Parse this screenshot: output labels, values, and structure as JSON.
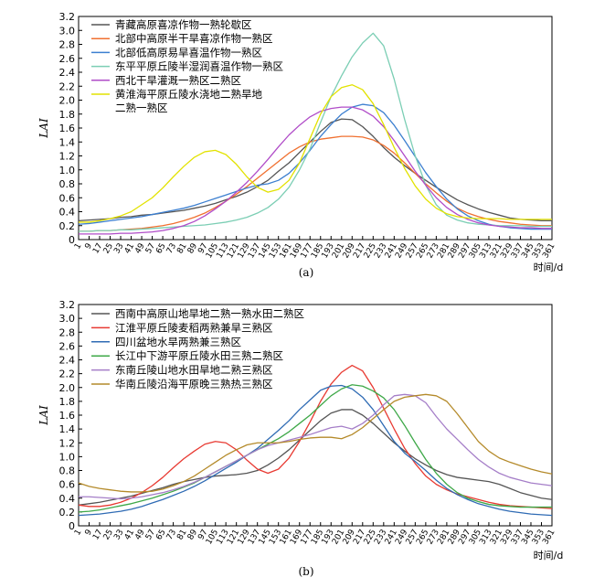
{
  "chart_data": [
    {
      "type": "line",
      "caption": "(a)",
      "ylabel": "LAI",
      "xlabel": "时间/d",
      "ylim": [
        0,
        3.2
      ],
      "yticks": [
        "0",
        "0.2",
        "0.4",
        "0.6",
        "0.8",
        "1.0",
        "1.2",
        "1.4",
        "1.6",
        "1.8",
        "2.0",
        "2.2",
        "2.4",
        "2.6",
        "2.8",
        "3.0",
        "3.2"
      ],
      "x": [
        1,
        9,
        17,
        25,
        33,
        41,
        49,
        57,
        65,
        73,
        81,
        89,
        97,
        105,
        113,
        121,
        129,
        137,
        145,
        153,
        161,
        169,
        177,
        185,
        193,
        201,
        209,
        217,
        225,
        233,
        241,
        249,
        257,
        265,
        273,
        281,
        289,
        297,
        305,
        313,
        321,
        329,
        337,
        345,
        353,
        361
      ],
      "xticks": [
        "1",
        "9",
        "17",
        "25",
        "33",
        "41",
        "49",
        "57",
        "65",
        "73",
        "81",
        "89",
        "97",
        "105",
        "113",
        "121",
        "129",
        "137",
        "145",
        "153",
        "161",
        "169",
        "177",
        "185",
        "193",
        "201",
        "209",
        "217",
        "225",
        "233",
        "241",
        "249",
        "257",
        "265",
        "273",
        "281",
        "289",
        "297",
        "305",
        "313",
        "321",
        "329",
        "337",
        "345",
        "353",
        "361"
      ],
      "legend_position": "top-left",
      "series": [
        {
          "name": "青藏高原喜凉作物一熟轮歇区",
          "color": "#555555",
          "values": [
            0.27,
            0.28,
            0.29,
            0.3,
            0.32,
            0.33,
            0.35,
            0.36,
            0.38,
            0.4,
            0.42,
            0.45,
            0.48,
            0.52,
            0.57,
            0.62,
            0.68,
            0.76,
            0.85,
            0.98,
            1.1,
            1.25,
            1.4,
            1.55,
            1.68,
            1.73,
            1.72,
            1.62,
            1.48,
            1.32,
            1.18,
            1.06,
            0.95,
            0.85,
            0.75,
            0.66,
            0.57,
            0.5,
            0.44,
            0.39,
            0.35,
            0.31,
            0.29,
            0.28,
            0.27,
            0.27
          ]
        },
        {
          "name": "北部中高原半干旱喜凉作物一熟区",
          "color": "#F07030",
          "values": [
            0.12,
            0.12,
            0.13,
            0.13,
            0.14,
            0.15,
            0.16,
            0.18,
            0.2,
            0.23,
            0.27,
            0.32,
            0.38,
            0.46,
            0.55,
            0.65,
            0.76,
            0.88,
            1.0,
            1.12,
            1.24,
            1.33,
            1.4,
            1.44,
            1.46,
            1.48,
            1.48,
            1.47,
            1.43,
            1.35,
            1.24,
            1.1,
            0.95,
            0.8,
            0.67,
            0.55,
            0.45,
            0.38,
            0.33,
            0.29,
            0.26,
            0.24,
            0.22,
            0.21,
            0.2,
            0.2
          ]
        },
        {
          "name": "北部低高原易旱喜温作物一熟区",
          "color": "#3C7FD0",
          "values": [
            0.22,
            0.23,
            0.25,
            0.27,
            0.29,
            0.31,
            0.33,
            0.36,
            0.39,
            0.42,
            0.45,
            0.49,
            0.54,
            0.59,
            0.64,
            0.69,
            0.74,
            0.78,
            0.8,
            0.85,
            0.95,
            1.1,
            1.28,
            1.48,
            1.65,
            1.8,
            1.9,
            1.94,
            1.92,
            1.82,
            1.64,
            1.42,
            1.19,
            0.96,
            0.76,
            0.58,
            0.44,
            0.34,
            0.27,
            0.22,
            0.19,
            0.17,
            0.16,
            0.15,
            0.15,
            0.15
          ]
        },
        {
          "name": "东平平原丘陵半湿润喜温作物一熟区",
          "color": "#7BCEB4",
          "values": [
            0.12,
            0.12,
            0.13,
            0.13,
            0.14,
            0.14,
            0.15,
            0.16,
            0.17,
            0.18,
            0.19,
            0.2,
            0.21,
            0.23,
            0.25,
            0.28,
            0.32,
            0.38,
            0.46,
            0.58,
            0.75,
            1.0,
            1.3,
            1.68,
            2.05,
            2.35,
            2.62,
            2.82,
            2.96,
            2.78,
            2.3,
            1.72,
            1.2,
            0.78,
            0.5,
            0.35,
            0.28,
            0.24,
            0.22,
            0.21,
            0.2,
            0.2,
            0.2,
            0.19,
            0.19,
            0.19
          ]
        },
        {
          "name": "西北干旱灌溉一熟区二熟区",
          "color": "#B04CC8",
          "values": [
            0.08,
            0.08,
            0.08,
            0.08,
            0.09,
            0.09,
            0.1,
            0.11,
            0.13,
            0.16,
            0.2,
            0.26,
            0.34,
            0.44,
            0.55,
            0.68,
            0.82,
            0.98,
            1.15,
            1.33,
            1.5,
            1.64,
            1.76,
            1.84,
            1.88,
            1.9,
            1.9,
            1.86,
            1.77,
            1.62,
            1.42,
            1.2,
            0.98,
            0.78,
            0.6,
            0.46,
            0.36,
            0.29,
            0.24,
            0.21,
            0.19,
            0.18,
            0.17,
            0.17,
            0.16,
            0.16
          ]
        },
        {
          "name": "黄淮海平原丘陵水浇地二熟旱地\n二熟一熟区",
          "color": "#E2E200",
          "values": [
            0.25,
            0.25,
            0.27,
            0.3,
            0.34,
            0.4,
            0.5,
            0.6,
            0.74,
            0.9,
            1.05,
            1.18,
            1.26,
            1.28,
            1.22,
            1.08,
            0.9,
            0.75,
            0.68,
            0.72,
            0.85,
            1.1,
            1.45,
            1.8,
            2.05,
            2.18,
            2.22,
            2.15,
            1.95,
            1.65,
            1.32,
            1.02,
            0.77,
            0.58,
            0.45,
            0.37,
            0.33,
            0.31,
            0.3,
            0.3,
            0.3,
            0.29,
            0.29,
            0.29,
            0.29,
            0.29
          ]
        }
      ]
    },
    {
      "type": "line",
      "caption": "(b)",
      "ylabel": "LAI",
      "xlabel": "时间/d",
      "ylim": [
        0,
        3.2
      ],
      "yticks": [
        "0",
        "0.2",
        "0.4",
        "0.6",
        "0.8",
        "1.0",
        "1.2",
        "1.4",
        "1.6",
        "1.8",
        "2.0",
        "2.2",
        "2.4",
        "2.6",
        "2.8",
        "3.0",
        "3.2"
      ],
      "x": [
        1,
        9,
        17,
        25,
        33,
        41,
        49,
        57,
        65,
        73,
        81,
        89,
        97,
        105,
        113,
        121,
        129,
        137,
        145,
        153,
        161,
        169,
        177,
        185,
        193,
        201,
        209,
        217,
        225,
        233,
        241,
        249,
        257,
        265,
        273,
        281,
        289,
        297,
        305,
        313,
        321,
        329,
        337,
        345,
        353,
        361
      ],
      "xticks": [
        "1",
        "9",
        "17",
        "25",
        "33",
        "41",
        "49",
        "57",
        "65",
        "73",
        "81",
        "89",
        "97",
        "105",
        "113",
        "121",
        "129",
        "137",
        "145",
        "153",
        "161",
        "169",
        "177",
        "185",
        "193",
        "201",
        "209",
        "217",
        "225",
        "233",
        "241",
        "249",
        "257",
        "265",
        "273",
        "281",
        "289",
        "297",
        "305",
        "313",
        "321",
        "329",
        "337",
        "345",
        "353",
        "361"
      ],
      "legend_position": "top-left",
      "series": [
        {
          "name": "西南中高原山地旱地二熟一熟水田二熟区",
          "color": "#555555",
          "values": [
            0.3,
            0.32,
            0.34,
            0.37,
            0.4,
            0.43,
            0.47,
            0.51,
            0.55,
            0.6,
            0.64,
            0.67,
            0.7,
            0.72,
            0.73,
            0.74,
            0.76,
            0.8,
            0.88,
            0.98,
            1.1,
            1.24,
            1.38,
            1.52,
            1.63,
            1.68,
            1.68,
            1.6,
            1.48,
            1.34,
            1.2,
            1.08,
            0.97,
            0.88,
            0.8,
            0.74,
            0.7,
            0.68,
            0.66,
            0.64,
            0.6,
            0.54,
            0.48,
            0.44,
            0.4,
            0.38
          ]
        },
        {
          "name": "江淮平原丘陵麦稻两熟兼旱三熟区",
          "color": "#E83A32",
          "values": [
            0.3,
            0.28,
            0.28,
            0.3,
            0.34,
            0.4,
            0.48,
            0.58,
            0.7,
            0.84,
            0.97,
            1.08,
            1.18,
            1.22,
            1.2,
            1.1,
            0.95,
            0.82,
            0.76,
            0.82,
            0.98,
            1.22,
            1.5,
            1.8,
            2.05,
            2.22,
            2.32,
            2.24,
            2.0,
            1.7,
            1.4,
            1.12,
            0.9,
            0.72,
            0.6,
            0.52,
            0.46,
            0.42,
            0.38,
            0.34,
            0.31,
            0.29,
            0.28,
            0.27,
            0.26,
            0.25
          ]
        },
        {
          "name": "四川盆地水旱两熟兼三熟区",
          "color": "#2F6BB4",
          "values": [
            0.15,
            0.16,
            0.17,
            0.19,
            0.21,
            0.24,
            0.28,
            0.33,
            0.38,
            0.44,
            0.5,
            0.57,
            0.65,
            0.74,
            0.83,
            0.92,
            1.02,
            1.12,
            1.25,
            1.38,
            1.52,
            1.68,
            1.82,
            1.96,
            2.02,
            2.03,
            1.98,
            1.86,
            1.68,
            1.45,
            1.22,
            1.05,
            0.93,
            0.8,
            0.66,
            0.54,
            0.45,
            0.38,
            0.32,
            0.28,
            0.24,
            0.21,
            0.19,
            0.17,
            0.16,
            0.15
          ]
        },
        {
          "name": "长江中下游平原丘陵水田三熟二熟区",
          "color": "#3EA848",
          "values": [
            0.2,
            0.21,
            0.23,
            0.26,
            0.29,
            0.32,
            0.36,
            0.4,
            0.45,
            0.5,
            0.56,
            0.62,
            0.7,
            0.78,
            0.86,
            0.94,
            1.02,
            1.1,
            1.18,
            1.26,
            1.36,
            1.48,
            1.6,
            1.74,
            1.88,
            1.98,
            2.04,
            2.02,
            1.95,
            1.85,
            1.68,
            1.45,
            1.2,
            0.96,
            0.76,
            0.6,
            0.48,
            0.4,
            0.35,
            0.31,
            0.29,
            0.28,
            0.27,
            0.27,
            0.27,
            0.27
          ]
        },
        {
          "name": "东南丘陵山地水田旱地二熟三熟区",
          "color": "#A57EC8",
          "values": [
            0.42,
            0.42,
            0.41,
            0.4,
            0.39,
            0.4,
            0.42,
            0.45,
            0.48,
            0.52,
            0.57,
            0.63,
            0.7,
            0.78,
            0.86,
            0.94,
            1.02,
            1.1,
            1.16,
            1.2,
            1.24,
            1.28,
            1.32,
            1.37,
            1.42,
            1.44,
            1.4,
            1.48,
            1.6,
            1.75,
            1.88,
            1.9,
            1.88,
            1.78,
            1.58,
            1.4,
            1.25,
            1.1,
            0.96,
            0.85,
            0.76,
            0.7,
            0.66,
            0.62,
            0.6,
            0.58
          ]
        },
        {
          "name": "华南丘陵沿海平原晚三熟热三熟区",
          "color": "#B48A2A",
          "values": [
            0.62,
            0.57,
            0.54,
            0.52,
            0.5,
            0.49,
            0.49,
            0.5,
            0.53,
            0.58,
            0.64,
            0.72,
            0.82,
            0.92,
            1.02,
            1.1,
            1.17,
            1.2,
            1.2,
            1.2,
            1.22,
            1.25,
            1.27,
            1.28,
            1.28,
            1.26,
            1.32,
            1.42,
            1.55,
            1.68,
            1.8,
            1.86,
            1.88,
            1.9,
            1.88,
            1.8,
            1.62,
            1.42,
            1.22,
            1.08,
            0.98,
            0.92,
            0.87,
            0.82,
            0.78,
            0.75
          ]
        }
      ]
    }
  ]
}
